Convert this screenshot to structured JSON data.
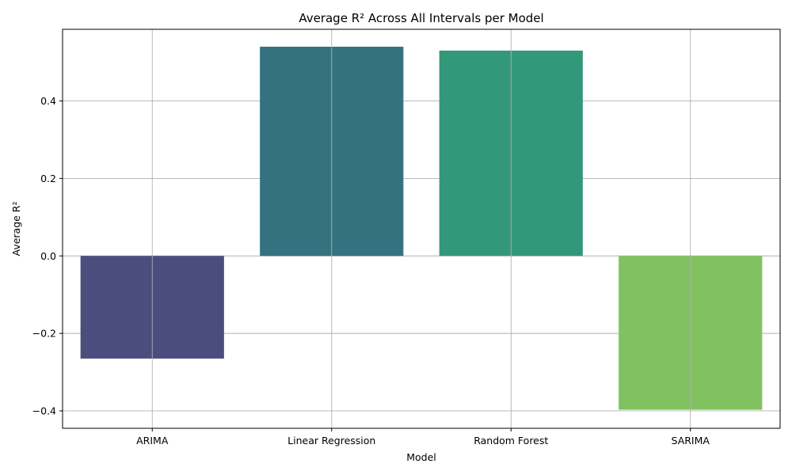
{
  "chart_data": {
    "type": "bar",
    "title": "Average R² Across All Intervals per Model",
    "xlabel": "Model",
    "ylabel": "Average R²",
    "categories": [
      "ARIMA",
      "Linear Regression",
      "Random Forest",
      "SARIMA"
    ],
    "values": [
      -0.265,
      0.54,
      0.53,
      -0.397
    ],
    "colors": [
      "#4a4d7d",
      "#357280",
      "#33987a",
      "#80c260"
    ],
    "ylim": [
      -0.445,
      0.585
    ],
    "yticks": [
      -0.4,
      -0.2,
      0.0,
      0.2,
      0.4
    ],
    "ytick_labels": [
      "−0.4",
      "−0.2",
      "0.0",
      "0.2",
      "0.4"
    ],
    "grid": true
  }
}
